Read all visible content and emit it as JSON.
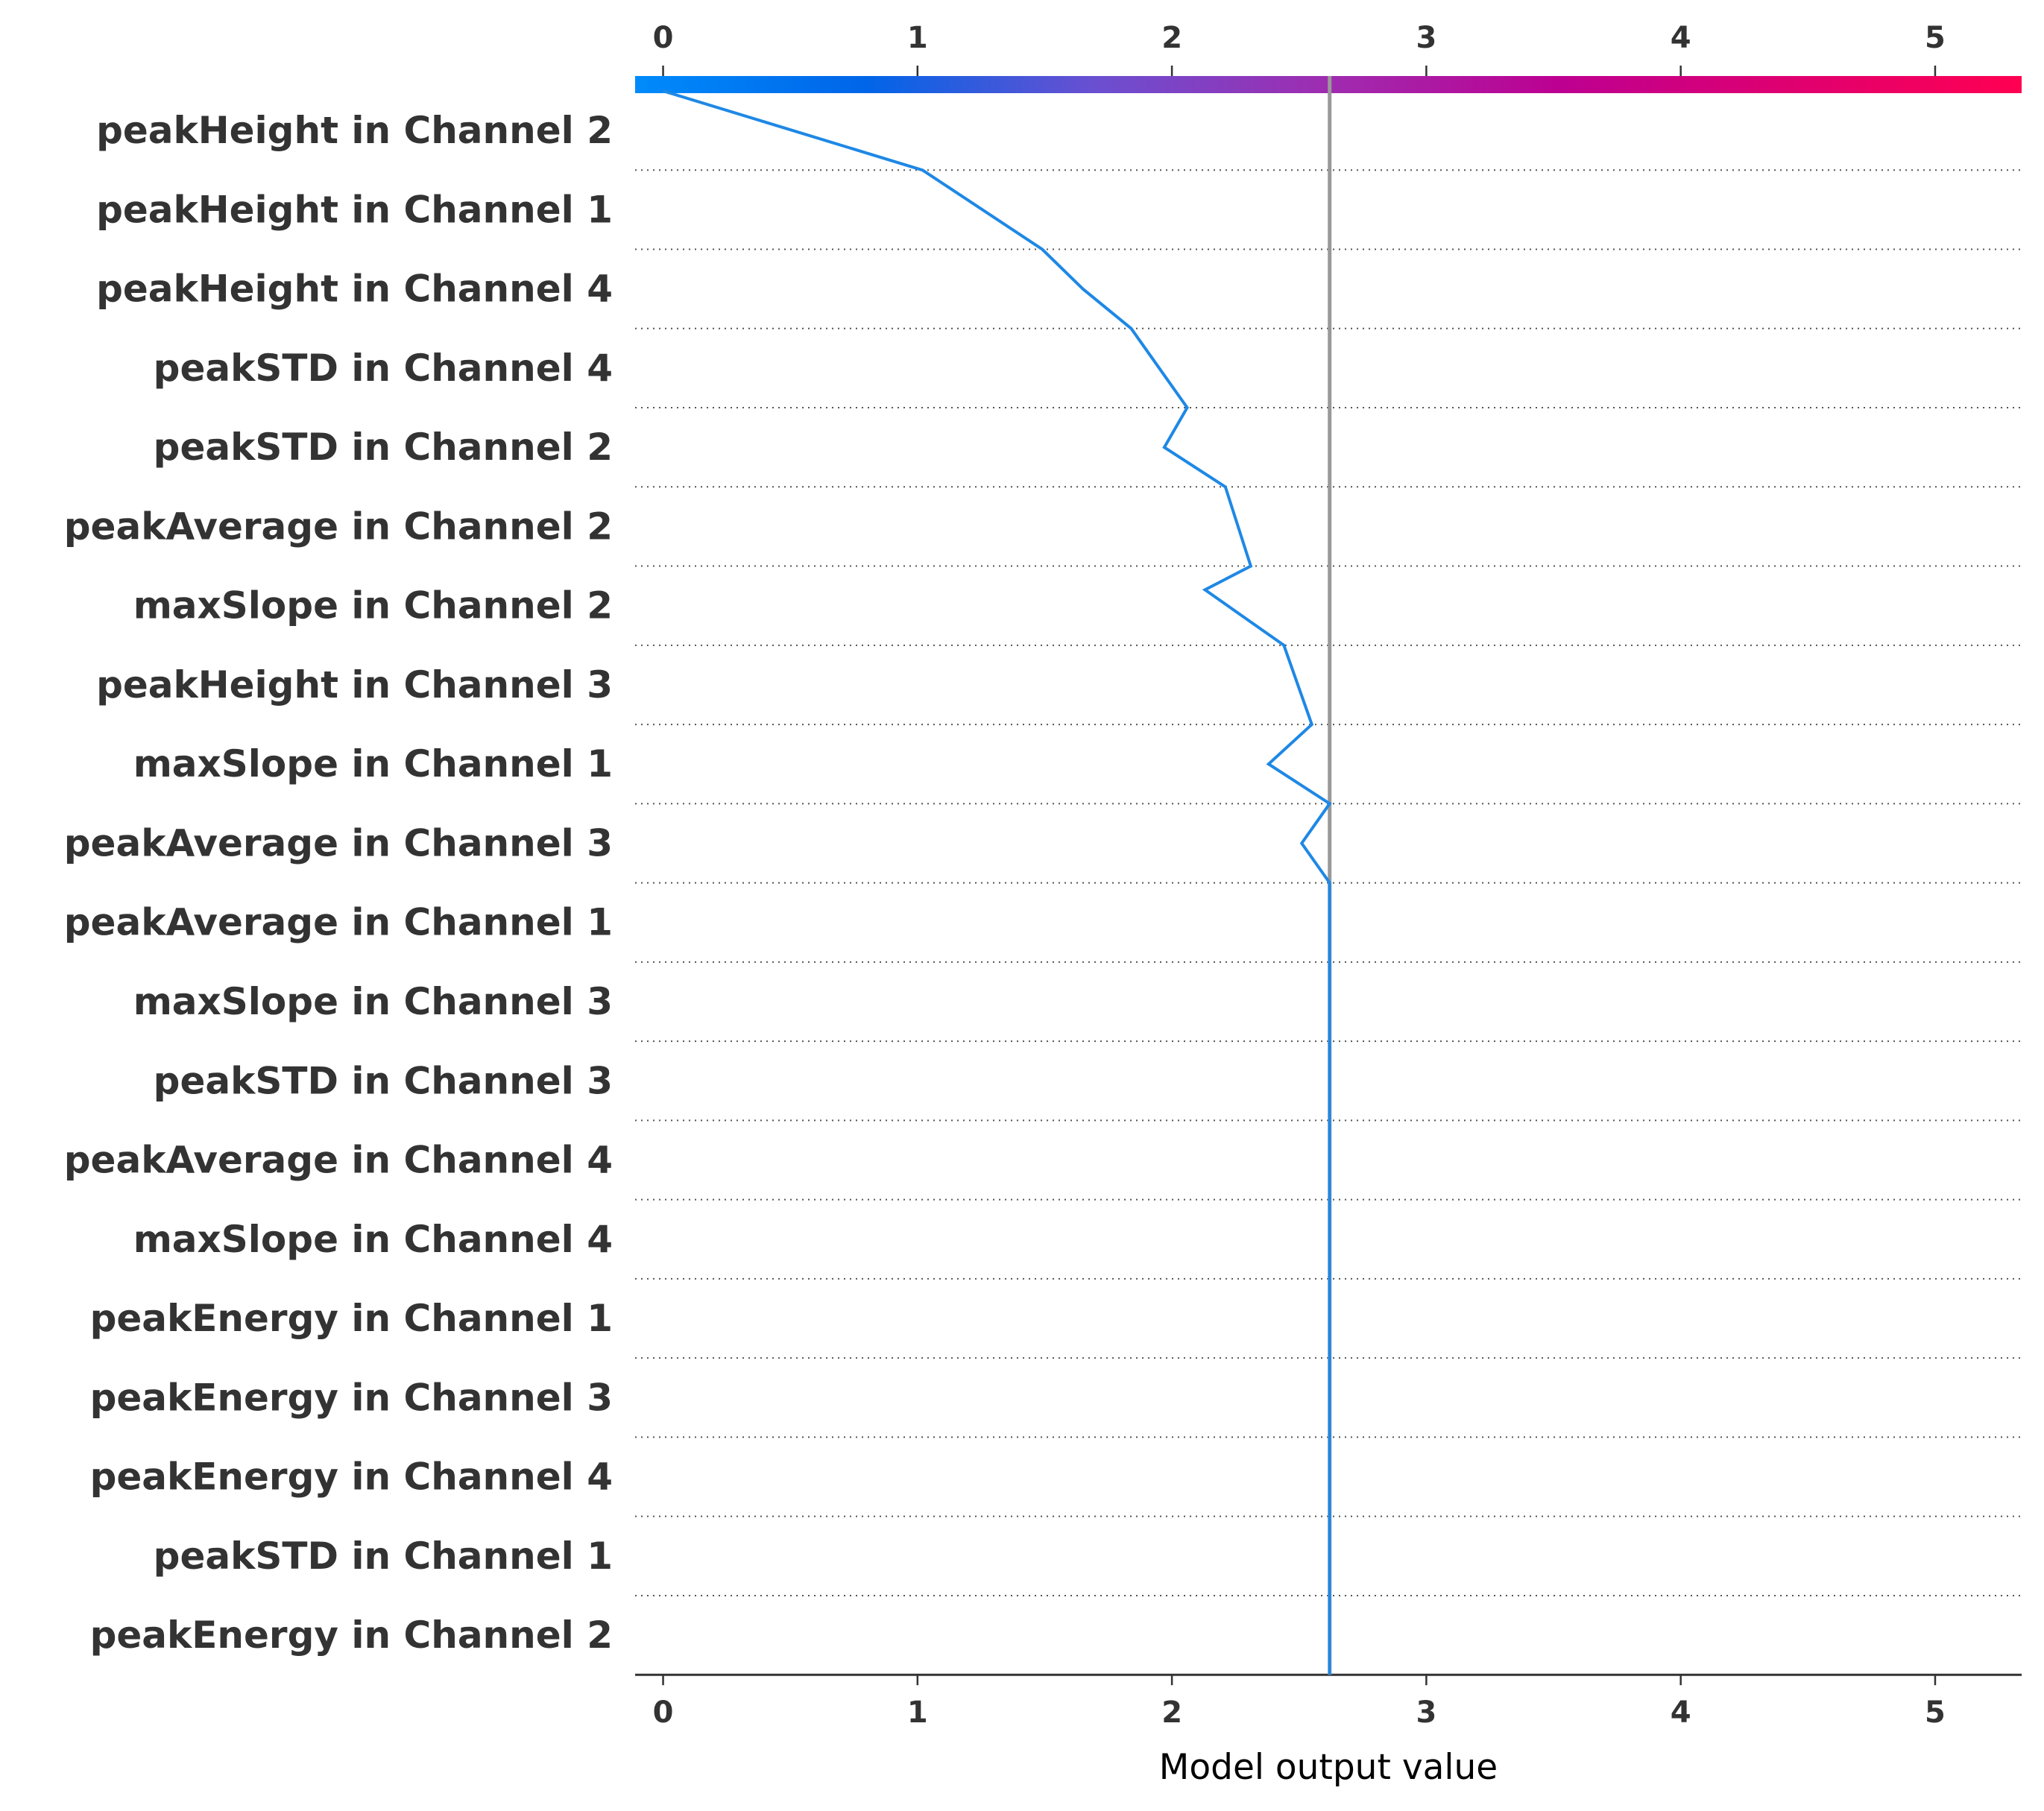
{
  "chart_data": {
    "type": "decision",
    "title": "",
    "xlabel": "Model output value",
    "ylabel": "",
    "xlim": [
      -0.11,
      5.34
    ],
    "xticks": [
      0,
      1,
      2,
      3,
      4,
      5
    ],
    "xtick_labels": [
      "0",
      "1",
      "2",
      "3",
      "4",
      "5"
    ],
    "base_value": 2.62,
    "features": [
      "peakHeight in Channel 2",
      "peakHeight in Channel 1",
      "peakHeight in Channel 4",
      "peakSTD in Channel 4",
      "peakSTD in Channel 2",
      "peakAverage in Channel 2",
      "maxSlope in Channel 2",
      "peakHeight in Channel 3",
      "maxSlope in Channel 1",
      "peakAverage in Channel 3",
      "peakAverage in Channel 1",
      "maxSlope in Channel 3",
      "peakSTD in Channel 3",
      "peakAverage in Channel 4",
      "maxSlope in Channel 4",
      "peakEnergy in Channel 1",
      "peakEnergy in Channel 3",
      "peakEnergy in Channel 4",
      "peakSTD in Channel 1",
      "peakEnergy in Channel 2"
    ],
    "path_values": [
      0.0,
      1.02,
      1.49,
      1.84,
      2.06,
      2.21,
      2.31,
      2.44,
      2.55,
      2.62,
      2.62,
      2.62,
      2.62,
      2.62,
      2.62,
      2.62,
      2.62,
      2.62,
      2.62,
      2.62,
      2.62
    ],
    "path_curve_points": [
      {
        "value": 1.65,
        "row": 2.5
      },
      {
        "value": 1.97,
        "row": 4.5
      },
      {
        "value": 2.13,
        "row": 6.3
      },
      {
        "value": 2.38,
        "row": 8.5
      },
      {
        "value": 2.51,
        "row": 9.5
      }
    ],
    "line_color": "#1e88e5",
    "base_line_color": "#999999",
    "colorbar": {
      "colors": [
        "#008bfb",
        "#0065e8",
        "#6b4fd0",
        "#9f2cb0",
        "#bd0091",
        "#df0070",
        "#ff0052"
      ]
    }
  }
}
